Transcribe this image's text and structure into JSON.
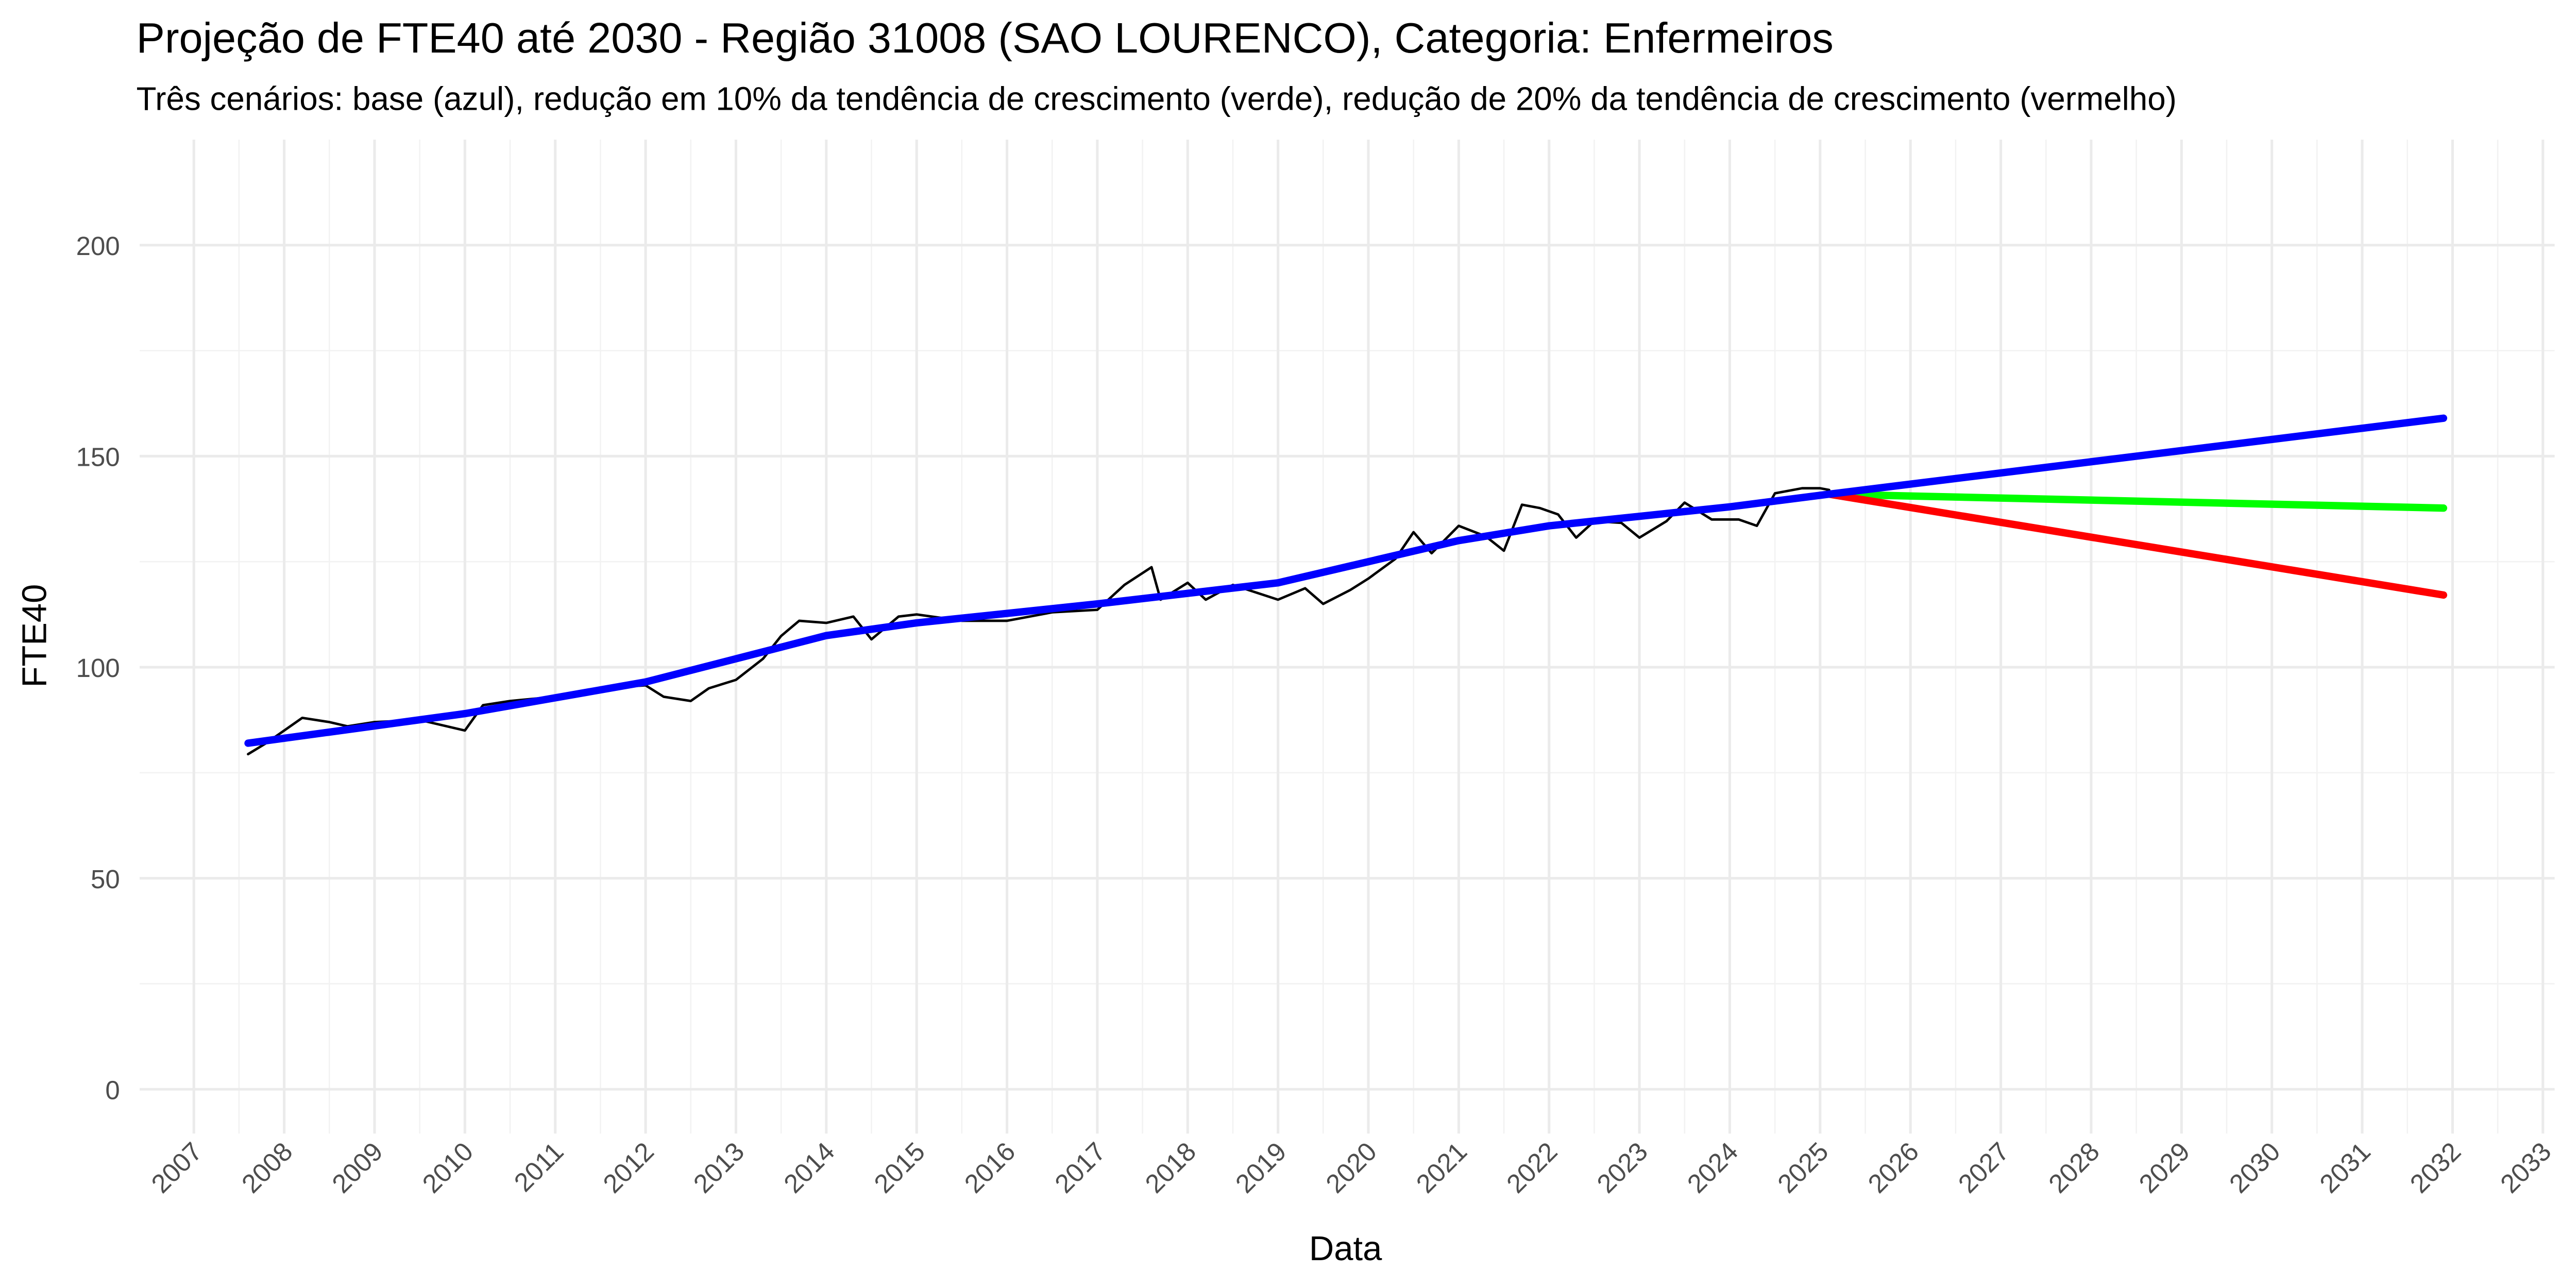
{
  "chart_data": {
    "type": "line",
    "title": "Projeção de FTE40 até 2030 - Região 31008 (SAO LOURENCO), Categoria: Enfermeiros",
    "subtitle": "Três cenários: base (azul), redução em 10% da tendência de crescimento (verde), redução de 20% da tendência de crescimento (vermelho)",
    "x_label": "Data",
    "y_label": "FTE40",
    "xlim": [
      2006.4,
      2033.13
    ],
    "ylim": [
      -10.5,
      225
    ],
    "xticks": [
      2007,
      2008,
      2009,
      2010,
      2011,
      2012,
      2013,
      2014,
      2015,
      2016,
      2017,
      2018,
      2019,
      2020,
      2021,
      2022,
      2023,
      2024,
      2025,
      2026,
      2027,
      2028,
      2029,
      2030,
      2031,
      2032,
      2033
    ],
    "yticks": [
      0,
      50,
      100,
      150,
      200
    ],
    "grid": true,
    "minor_grid": true,
    "series": [
      {
        "color": "#000000",
        "width": 1.5,
        "x": [
          2007.6,
          2007.8,
          2008.0,
          2008.2,
          2008.5,
          2008.7,
          2009.0,
          2009.5,
          2010.0,
          2010.2,
          2010.5,
          2011.0,
          2011.5,
          2012.0,
          2012.2,
          2012.5,
          2012.7,
          2013.0,
          2013.3,
          2013.5,
          2013.7,
          2014.0,
          2014.3,
          2014.5,
          2014.8,
          2015.0,
          2015.5,
          2016.0,
          2016.5,
          2017.0,
          2017.3,
          2017.6,
          2017.7,
          2018.0,
          2018.2,
          2018.5,
          2019.0,
          2019.3,
          2019.5,
          2019.8,
          2020.0,
          2020.3,
          2020.5,
          2020.7,
          2021.0,
          2021.3,
          2021.5,
          2021.7,
          2021.9,
          2022.1,
          2022.3,
          2022.5,
          2022.8,
          2023.0,
          2023.3,
          2023.5,
          2023.8,
          2024.1,
          2024.3,
          2024.5,
          2024.8,
          2025.0,
          2025.1
        ],
        "values": [
          79.4,
          82,
          85,
          88,
          87,
          86,
          87,
          87.5,
          85,
          91,
          92,
          93,
          95,
          95.7,
          93,
          92,
          95,
          97,
          102,
          107.4,
          111,
          110.5,
          112,
          106.6,
          112,
          112.5,
          111,
          111,
          113,
          113.6,
          119.5,
          123.7,
          116,
          120,
          116,
          119.5,
          116,
          118.7,
          115,
          118.3,
          121,
          125.7,
          132,
          127,
          133.5,
          131,
          127.6,
          138.5,
          137.7,
          136.2,
          130.7,
          134.6,
          134.2,
          130.7,
          134.6,
          139,
          135,
          135,
          133.5,
          141.2,
          142.4,
          142.4,
          142
        ]
      },
      {
        "color": "#00ff00",
        "width": 4.5,
        "x": [
          2025.1,
          2031.9
        ],
        "values": [
          141,
          137.7
        ]
      },
      {
        "color": "#ff0000",
        "width": 4.5,
        "x": [
          2025.1,
          2031.9
        ],
        "values": [
          141,
          117.1
        ]
      },
      {
        "color": "#0000ff",
        "width": 4.5,
        "x": [
          2007.6,
          2010.0,
          2012.0,
          2013.0,
          2014.0,
          2015.0,
          2017.0,
          2019.0,
          2020.0,
          2021.0,
          2022.0,
          2024.0,
          2025.1,
          2031.9
        ],
        "values": [
          82,
          89,
          96.5,
          102,
          107.5,
          110.5,
          115,
          120,
          125,
          130,
          133.5,
          138,
          141,
          159
        ]
      }
    ]
  }
}
